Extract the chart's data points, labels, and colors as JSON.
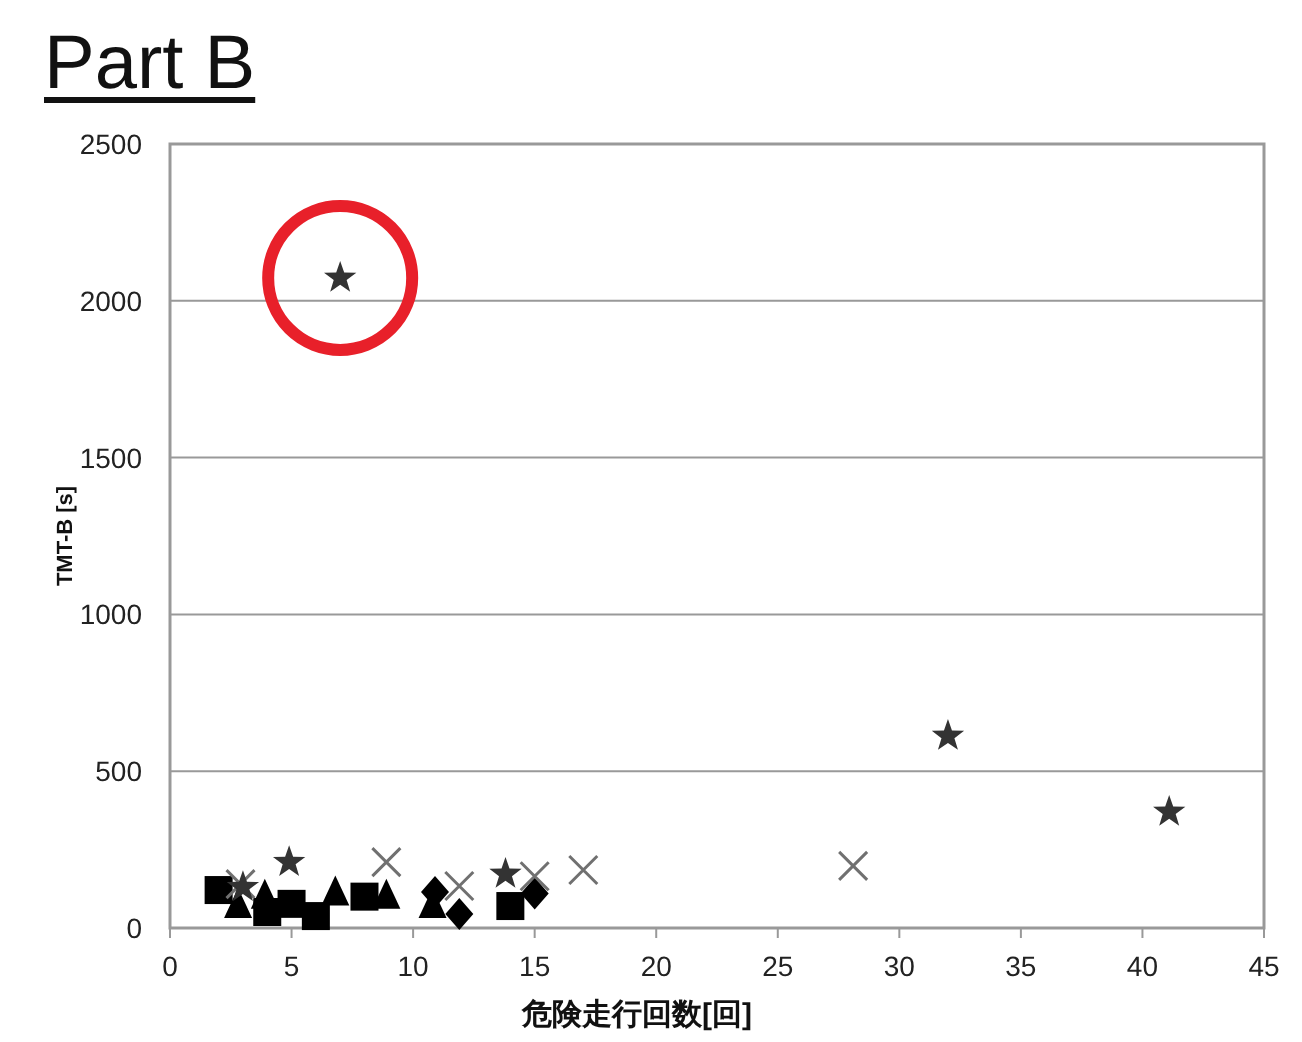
{
  "chart_data": {
    "type": "scatter",
    "title": "Part B",
    "xlabel": "危険走行回数[回]",
    "ylabel": "TMT-B [s]",
    "xlim": [
      0,
      45
    ],
    "xticks": [
      0,
      5,
      10,
      15,
      20,
      25,
      30,
      35,
      40,
      45
    ],
    "ylim": [
      0,
      2500
    ],
    "yticks": [
      0,
      500,
      1000,
      1500,
      2000,
      2500
    ],
    "grid": "y",
    "series": [
      {
        "marker": "square",
        "color": "#000000",
        "x": [
          2,
          4,
          5,
          6,
          8,
          14
        ],
        "values": [
          121,
          51,
          77,
          38,
          100,
          70
        ]
      },
      {
        "marker": "triangle",
        "color": "#000000",
        "x": [
          2.8,
          3.9,
          6.8,
          8.9,
          10.8
        ],
        "values": [
          70,
          100,
          110,
          100,
          70
        ]
      },
      {
        "marker": "diamond",
        "color": "#000000",
        "x": [
          10.9,
          11.9,
          15
        ],
        "values": [
          115,
          45,
          110
        ]
      },
      {
        "marker": "cross",
        "color": "#707070",
        "x": [
          2.9,
          8.9,
          11.9,
          15,
          17,
          28.1
        ],
        "values": [
          140,
          210,
          134,
          165,
          185,
          198
        ]
      },
      {
        "marker": "star",
        "color": "#333333",
        "x": [
          3,
          4.9,
          7,
          13.8,
          32,
          41.1
        ],
        "values": [
          130,
          210,
          2073,
          172,
          612,
          370
        ]
      }
    ]
  }
}
